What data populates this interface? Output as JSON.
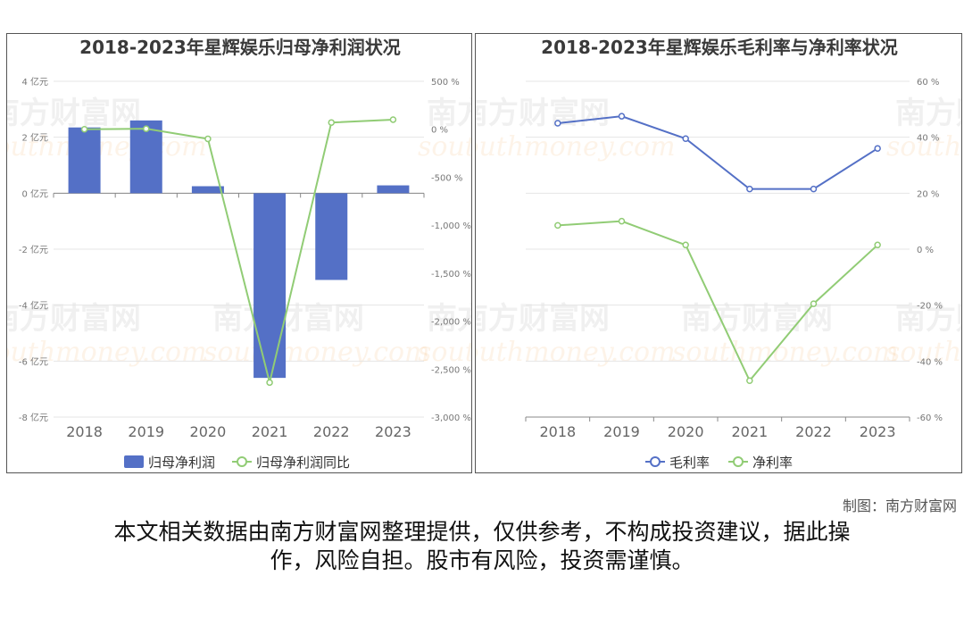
{
  "charts": {
    "left": {
      "title": "2018-2023年星辉娱乐归母净利润状况",
      "chart_data": {
        "type": "bar",
        "categories": [
          "2018",
          "2019",
          "2020",
          "2021",
          "2022",
          "2023"
        ],
        "series": [
          {
            "name": "归母净利润",
            "type": "bar",
            "axis": "left",
            "values": [
              2.35,
              2.6,
              0.25,
              -6.6,
              -3.1,
              0.28
            ]
          },
          {
            "name": "归母净利润同比",
            "type": "line",
            "axis": "right",
            "values": [
              0,
              5,
              -100,
              -2640,
              70,
              100
            ]
          }
        ],
        "y_left": {
          "min": -8,
          "max": 4,
          "step": 2,
          "unit": "亿元",
          "ticks": [
            "4 亿元",
            "2 亿元",
            "0 亿元",
            "-2 亿元",
            "-4 亿元",
            "-6 亿元",
            "-8 亿元"
          ]
        },
        "y_right": {
          "min": -3000,
          "max": 500,
          "step": 500,
          "ticks": [
            "500 %",
            "0 %",
            "-500 %",
            "-1,000 %",
            "-1,500 %",
            "-2,000 %",
            "-2,500 %",
            "-3,000 %"
          ]
        },
        "legend": "bottom",
        "colors": {
          "bar": "#5470c6",
          "line": "#91cc75"
        }
      }
    },
    "right": {
      "title": "2018-2023年星辉娱乐毛利率与净利率状况",
      "chart_data": {
        "type": "line",
        "categories": [
          "2018",
          "2019",
          "2020",
          "2021",
          "2022",
          "2023"
        ],
        "series": [
          {
            "name": "毛利率",
            "values": [
              45,
              47.5,
              39.5,
              21.5,
              21.5,
              36
            ]
          },
          {
            "name": "净利率",
            "values": [
              8.5,
              10,
              1.5,
              -47,
              -19.5,
              1.5
            ]
          }
        ],
        "y_right": {
          "min": -60,
          "max": 60,
          "step": 20,
          "ticks": [
            "60 %",
            "40 %",
            "20 %",
            "0 %",
            "-20 %",
            "-40 %",
            "-60 %"
          ]
        },
        "legend": "bottom",
        "colors": {
          "gross": "#5470c6",
          "net": "#91cc75"
        }
      }
    }
  },
  "watermark": {
    "cn": "南方财富网",
    "en": "southmoney.com"
  },
  "footer": {
    "credit": "制图：南方财富网",
    "disclaimer_line1": "本文相关数据由南方财富网整理提供，仅供参考，不构成投资建议，据此操",
    "disclaimer_line2": "作，风险自担。股市有风险，投资需谨慎。"
  }
}
